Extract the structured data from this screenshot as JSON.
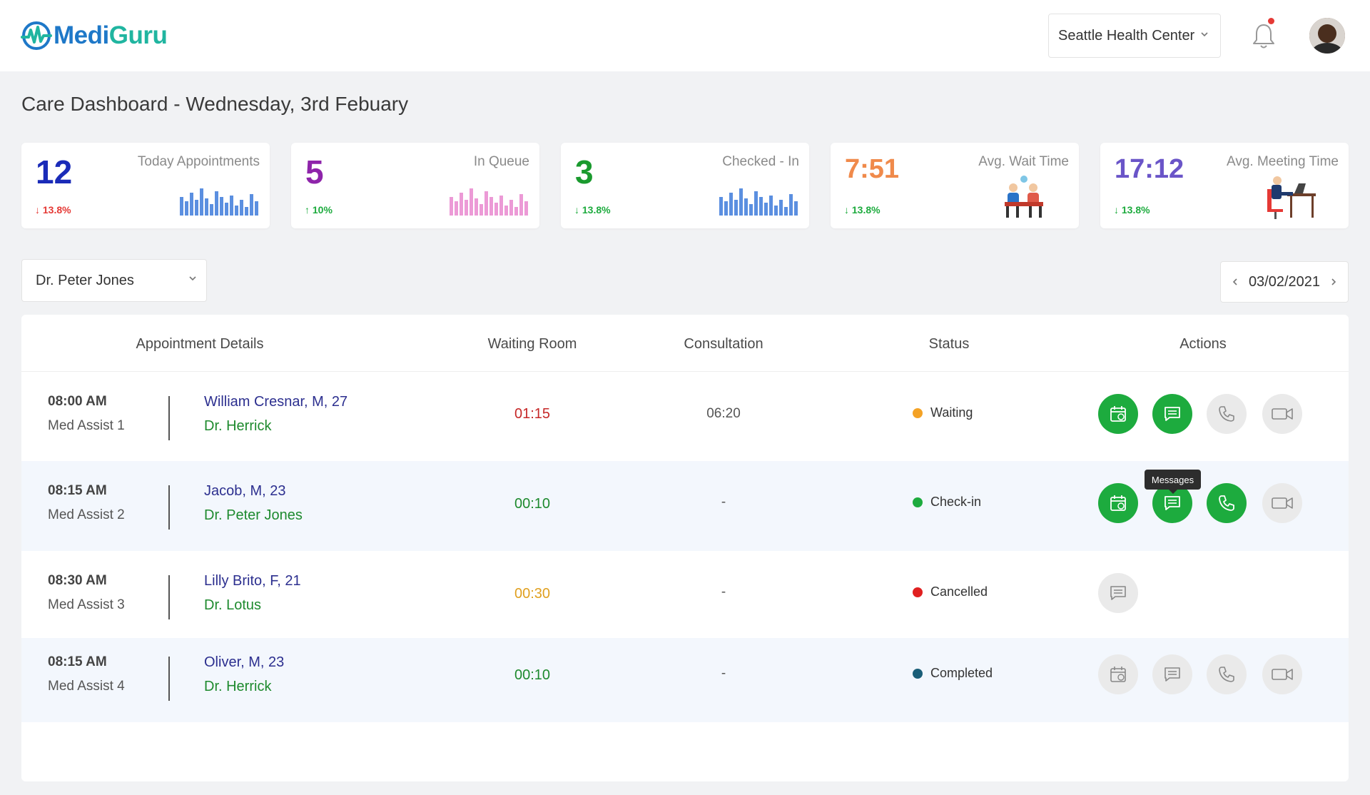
{
  "brand": {
    "name_part1": "Medi",
    "name_part2": "Guru"
  },
  "header": {
    "location": "Seattle Health Center",
    "notification_dot": true
  },
  "page": {
    "title": "Care Dashboard - Wednesday, 3rd Febuary"
  },
  "stats": [
    {
      "value": "12",
      "label": "Today Appointments",
      "change": "13.8%",
      "direction": "down",
      "value_color": "#1a2bb8",
      "change_color": "#e53935",
      "graphic": "bar-chart-blue"
    },
    {
      "value": "5",
      "label": "In Queue",
      "change": "10%",
      "direction": "up",
      "value_color": "#8e24aa",
      "change_color": "#1dab3e",
      "graphic": "bar-chart-pink"
    },
    {
      "value": "3",
      "label": "Checked - In",
      "change": "13.8%",
      "direction": "down",
      "value_color": "#1a9a2e",
      "change_color": "#1dab3e",
      "graphic": "bar-chart-blue"
    },
    {
      "value": "7:51",
      "label": "Avg. Wait Time",
      "change": "13.8%",
      "direction": "down",
      "value_color": "#f08a4b",
      "change_color": "#1dab3e",
      "graphic": "waiting-people-illustration"
    },
    {
      "value": "17:12",
      "label": "Avg. Meeting Time",
      "change": "13.8%",
      "direction": "down",
      "value_color": "#6a55c8",
      "change_color": "#1dab3e",
      "graphic": "desk-worker-illustration"
    }
  ],
  "filters": {
    "doctor": "Dr. Peter Jones",
    "date": "03/02/2021"
  },
  "table": {
    "headers": [
      "Appointment Details",
      "Waiting Room",
      "Consultation",
      "Status",
      "Actions"
    ],
    "rows": [
      {
        "time": "08:00 AM",
        "assist": "Med Assist 1",
        "patient": "William Cresnar, M, 27",
        "doctor": "Dr. Herrick",
        "waiting": "01:15",
        "waiting_color": "#c62828",
        "consultation": "06:20",
        "status": "Waiting",
        "status_color": "#f4a225",
        "actions": [
          "schedule",
          "messages",
          "call",
          "video"
        ],
        "active": [
          true,
          true,
          false,
          false
        ]
      },
      {
        "time": "08:15 AM",
        "assist": "Med Assist 2",
        "patient": "Jacob, M, 23",
        "doctor": "Dr. Peter Jones",
        "waiting": "00:10",
        "waiting_color": "#1e8a2e",
        "consultation": "-",
        "status": "Check-in",
        "status_color": "#1dab3e",
        "actions": [
          "schedule",
          "messages",
          "call",
          "video"
        ],
        "active": [
          true,
          true,
          true,
          false
        ]
      },
      {
        "time": "08:30 AM",
        "assist": "Med Assist 3",
        "patient": "Lilly Brito, F, 21",
        "doctor": "Dr. Lotus",
        "waiting": "00:30",
        "waiting_color": "#e0a020",
        "consultation": "-",
        "status": "Cancelled",
        "status_color": "#e02020",
        "actions": [
          "messages"
        ],
        "active": [
          false
        ]
      },
      {
        "time": "08:15 AM",
        "assist": "Med Assist 4",
        "patient": "Oliver, M, 23",
        "doctor": "Dr. Herrick",
        "waiting": "00:10",
        "waiting_color": "#1e8a2e",
        "consultation": "-",
        "status": "Completed",
        "status_color": "#1a5e78",
        "actions": [
          "schedule",
          "messages",
          "call",
          "video"
        ],
        "active": [
          false,
          false,
          false,
          false
        ]
      }
    ],
    "tooltip": "Messages"
  }
}
